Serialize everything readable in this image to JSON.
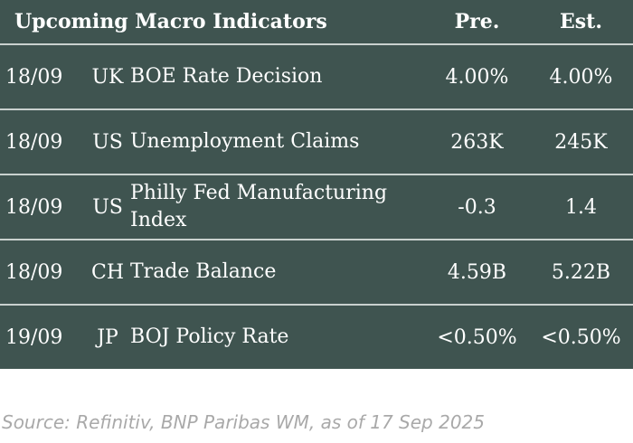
{
  "table": {
    "headers": {
      "title": "Upcoming Macro Indicators",
      "pre": "Pre.",
      "est": "Est."
    },
    "rows": [
      {
        "date": "18/09",
        "country": "UK",
        "name": "BOE Rate Decision",
        "pre": "4.00%",
        "est": "4.00%"
      },
      {
        "date": "18/09",
        "country": "US",
        "name": "Unemployment Claims",
        "pre": "263K",
        "est": "245K"
      },
      {
        "date": "18/09",
        "country": "US",
        "name": "Philly Fed Manufacturing Index",
        "pre": "-0.3",
        "est": "1.4"
      },
      {
        "date": "18/09",
        "country": "CH",
        "name": "Trade Balance",
        "pre": "4.59B",
        "est": "5.22B"
      },
      {
        "date": "19/09",
        "country": "JP",
        "name": "BOJ Policy Rate",
        "pre": "<0.50%",
        "est": "<0.50%"
      }
    ]
  },
  "source": "Source: Refinitiv, BNP Paribas WM, as of 17 Sep 2025"
}
